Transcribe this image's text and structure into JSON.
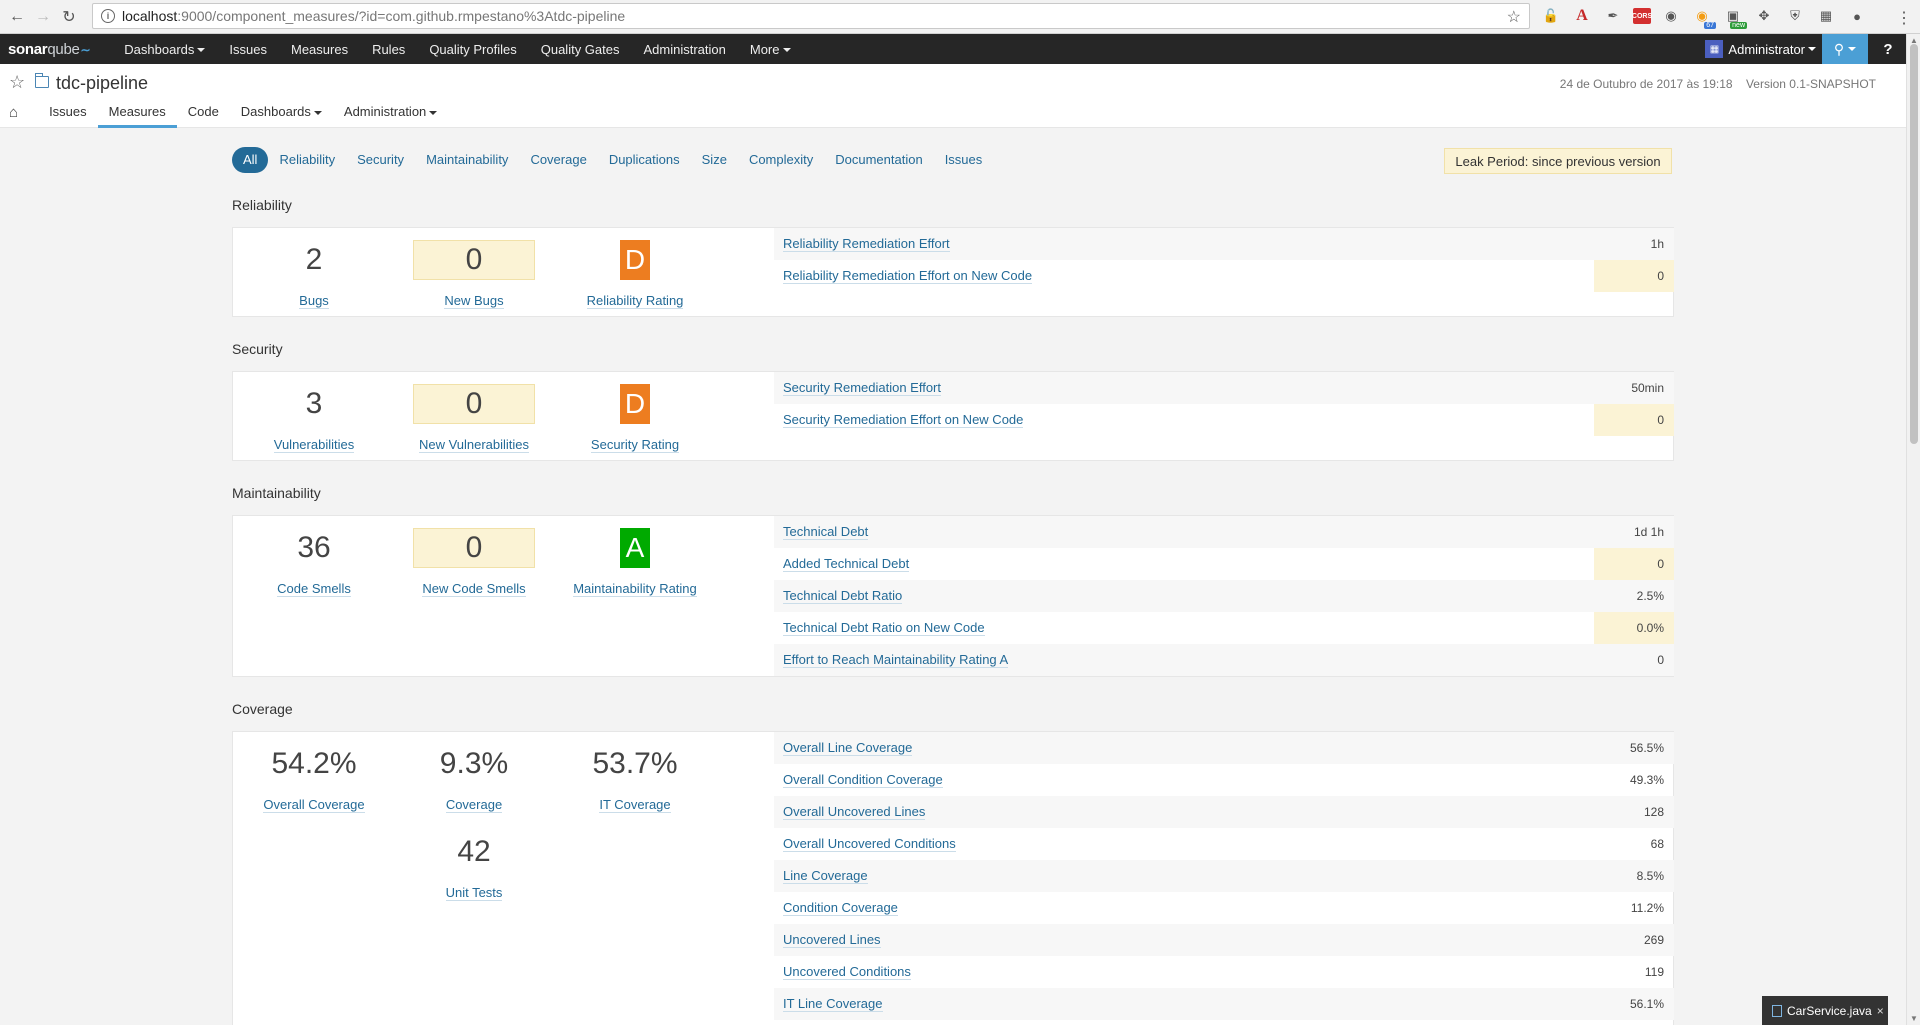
{
  "browser": {
    "url_host": "localhost",
    "url_path": ":9000/component_measures/?id=com.github.rmpestano%3Atdc-pipeline",
    "ext_badges": [
      "67",
      "new"
    ],
    "ext_cors": "CORS"
  },
  "sq_nav": {
    "logo_sonar": "sonar",
    "logo_qube": "qube",
    "items": [
      "Dashboards",
      "Issues",
      "Measures",
      "Rules",
      "Quality Profiles",
      "Quality Gates",
      "Administration",
      "More"
    ],
    "user": "Administrator",
    "help": "?"
  },
  "component": {
    "name": "tdc-pipeline",
    "date": "24 de Outubro de 2017 às 19:18",
    "version": "Version 0.1-SNAPSHOT",
    "tabs": [
      "Issues",
      "Measures",
      "Code",
      "Dashboards",
      "Administration"
    ],
    "active_tab": "Measures"
  },
  "domain_tabs": [
    "All",
    "Reliability",
    "Security",
    "Maintainability",
    "Coverage",
    "Duplications",
    "Size",
    "Complexity",
    "Documentation",
    "Issues"
  ],
  "leak_period": "Leak Period: since previous version",
  "reliability": {
    "title": "Reliability",
    "bugs": {
      "value": "2",
      "label": "Bugs"
    },
    "new_bugs": {
      "value": "0",
      "label": "New Bugs"
    },
    "rating": {
      "value": "D",
      "label": "Reliability Rating"
    },
    "measures": [
      {
        "name": "Reliability Remediation Effort",
        "value": "1h",
        "leak": false
      },
      {
        "name": "Reliability Remediation Effort on New Code",
        "value": "0",
        "leak": true
      }
    ]
  },
  "security": {
    "title": "Security",
    "vulns": {
      "value": "3",
      "label": "Vulnerabilities"
    },
    "new_vulns": {
      "value": "0",
      "label": "New Vulnerabilities"
    },
    "rating": {
      "value": "D",
      "label": "Security Rating"
    },
    "measures": [
      {
        "name": "Security Remediation Effort",
        "value": "50min",
        "leak": false
      },
      {
        "name": "Security Remediation Effort on New Code",
        "value": "0",
        "leak": true
      }
    ]
  },
  "maintainability": {
    "title": "Maintainability",
    "smells": {
      "value": "36",
      "label": "Code Smells"
    },
    "new_smells": {
      "value": "0",
      "label": "New Code Smells"
    },
    "rating": {
      "value": "A",
      "label": "Maintainability Rating"
    },
    "measures": [
      {
        "name": "Technical Debt",
        "value": "1d 1h",
        "leak": false
      },
      {
        "name": "Added Technical Debt",
        "value": "0",
        "leak": true
      },
      {
        "name": "Technical Debt Ratio",
        "value": "2.5%",
        "leak": false
      },
      {
        "name": "Technical Debt Ratio on New Code",
        "value": "0.0%",
        "leak": true
      },
      {
        "name": "Effort to Reach Maintainability Rating A",
        "value": "0",
        "leak": false
      }
    ]
  },
  "coverage": {
    "title": "Coverage",
    "overall": {
      "value": "54.2%",
      "label": "Overall Coverage"
    },
    "coverage": {
      "value": "9.3%",
      "label": "Coverage"
    },
    "it": {
      "value": "53.7%",
      "label": "IT Coverage"
    },
    "unit_tests": {
      "value": "42",
      "label": "Unit Tests"
    },
    "measures": [
      {
        "name": "Overall Line Coverage",
        "value": "56.5%",
        "leak": false
      },
      {
        "name": "Overall Condition Coverage",
        "value": "49.3%",
        "leak": false
      },
      {
        "name": "Overall Uncovered Lines",
        "value": "128",
        "leak": false
      },
      {
        "name": "Overall Uncovered Conditions",
        "value": "68",
        "leak": false
      },
      {
        "name": "Line Coverage",
        "value": "8.5%",
        "leak": false
      },
      {
        "name": "Condition Coverage",
        "value": "11.2%",
        "leak": false
      },
      {
        "name": "Uncovered Lines",
        "value": "269",
        "leak": false
      },
      {
        "name": "Uncovered Conditions",
        "value": "119",
        "leak": false
      },
      {
        "name": "IT Line Coverage",
        "value": "56.1%",
        "leak": false
      }
    ]
  },
  "file_chip": {
    "label": "CarService.java",
    "close": "×"
  },
  "colors": {
    "link": "#236a97",
    "leak_bg": "#fbf3d5",
    "rating_d": "#ed7d20",
    "rating_a": "#00aa00",
    "nav_bg": "#262626",
    "accent": "#4b9fd5"
  }
}
